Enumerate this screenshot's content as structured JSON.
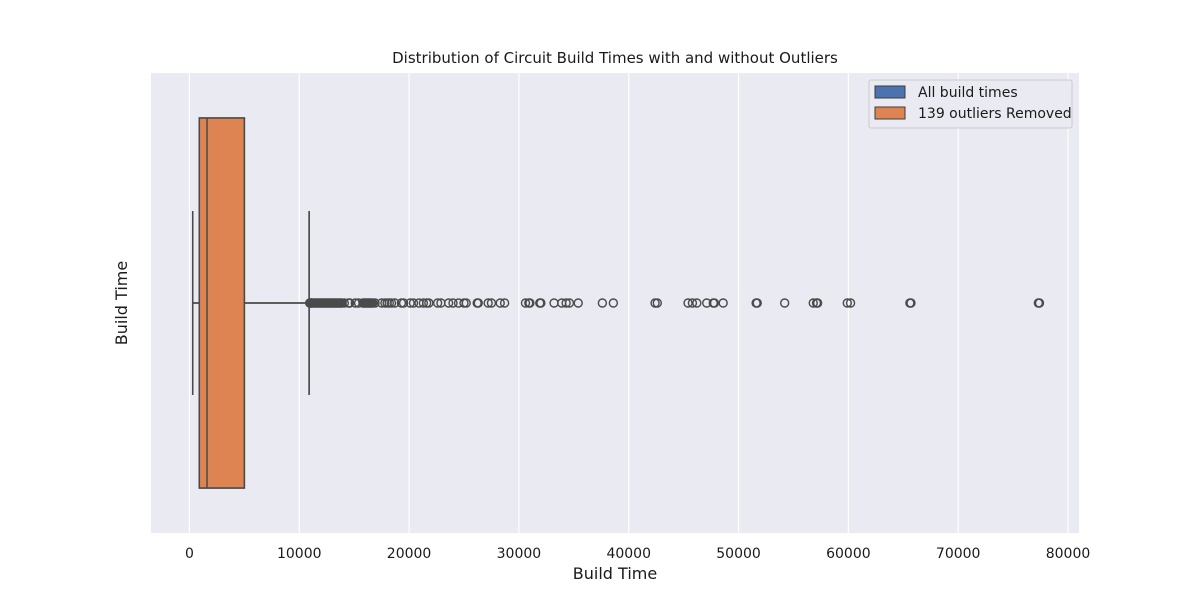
{
  "chart_data": {
    "type": "box",
    "title": "Distribution of Circuit Build Times with and without Outliers",
    "xlabel": "Build Time",
    "ylabel": "Build Time",
    "xlim": [
      -3500,
      81000
    ],
    "xticks": [
      0,
      10000,
      20000,
      30000,
      40000,
      50000,
      60000,
      70000,
      80000
    ],
    "grid": true,
    "legend_position": "top-right",
    "colors": {
      "background": "#eaeaf2",
      "grid": "#ffffff",
      "line": "#4a4a4a",
      "all_build_times": "#4c72b0",
      "outliers_removed": "#dd8452"
    },
    "series": [
      {
        "name": "All build times",
        "min": 300,
        "q1": 900,
        "median": 1600,
        "q3": 5000,
        "max": 10900,
        "outliers": [
          10950,
          11000,
          11050,
          11100,
          11200,
          11300,
          11400,
          11500,
          11600,
          11700,
          11800,
          11900,
          12000,
          12100,
          12200,
          12300,
          12400,
          12500,
          12600,
          12700,
          12800,
          12900,
          13000,
          13100,
          13200,
          13300,
          13400,
          13500,
          13600,
          13700,
          13800,
          13900,
          14100,
          14500,
          14600,
          15100,
          15400,
          15800,
          15900,
          16000,
          16100,
          16200,
          16300,
          16400,
          16500,
          16600,
          16700,
          16900,
          17500,
          17800,
          18000,
          18200,
          18400,
          18700,
          19300,
          19500,
          20100,
          20400,
          20900,
          21300,
          21600,
          21800,
          22600,
          22900,
          23600,
          24000,
          24500,
          25000,
          25200,
          26200,
          26300,
          27200,
          27500,
          28300,
          28700,
          30600,
          30900,
          31000,
          31900,
          32000,
          33200,
          33900,
          34300,
          34600,
          35400,
          37600,
          38600,
          42400,
          42600,
          45400,
          45800,
          46200,
          47100,
          47700,
          47800,
          48600,
          51600,
          51700,
          54200,
          56800,
          57100,
          57200,
          59900,
          60200,
          65600,
          65700,
          77300,
          77400
        ]
      },
      {
        "name": "139 outliers Removed",
        "min": 300,
        "q1": 900,
        "median": 1600,
        "q3": 5000,
        "max": 10900,
        "outliers": []
      }
    ]
  }
}
